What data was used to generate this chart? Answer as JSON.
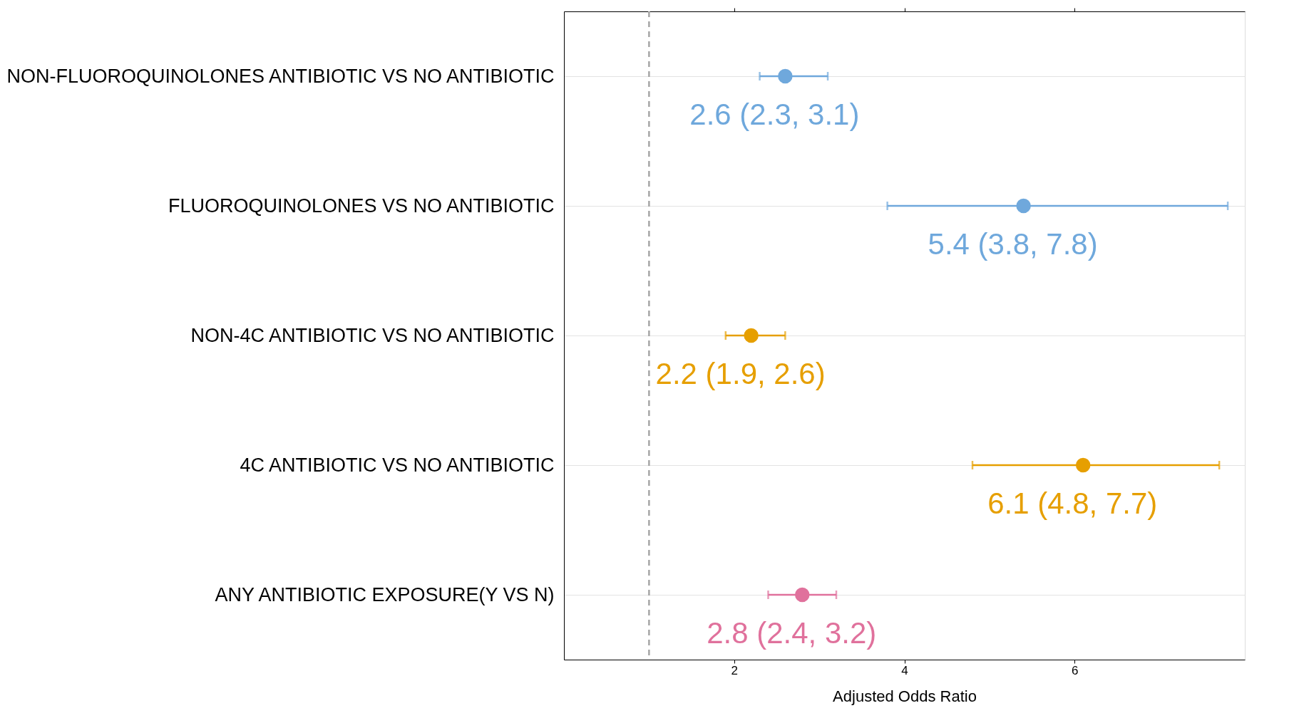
{
  "chart_data": {
    "type": "scatter",
    "orientation": "horizontal",
    "xlabel": "Adjusted Odds Ratio",
    "categories": [
      "NON-FLUOROQUINOLONES ANTIBIOTIC VS NO ANTIBIOTIC",
      "FLUOROQUINOLONES VS NO ANTIBIOTIC",
      "NON-4C ANTIBIOTIC VS NO ANTIBIOTIC",
      "4C ANTIBIOTIC VS NO ANTIBIOTIC",
      "ANY ANTIBIOTIC EXPOSURE(Y VS N)"
    ],
    "values": [
      2.6,
      5.4,
      2.2,
      6.1,
      2.8
    ],
    "errors": [
      [
        2.3,
        3.1
      ],
      [
        3.8,
        7.8
      ],
      [
        1.9,
        2.6
      ],
      [
        4.8,
        7.7
      ],
      [
        2.4,
        3.2
      ]
    ],
    "colors": [
      "#6fa8dc",
      "#6fa8dc",
      "#e69f00",
      "#e69f00",
      "#e0719c"
    ],
    "value_labels": [
      "2.6 (2.3, 3.1)",
      "5.4 (3.8, 7.8)",
      "2.2 (1.9, 2.6)",
      "6.1 (4.8, 7.7)",
      "2.8 (2.4, 3.2)"
    ],
    "xlim": [
      0,
      8
    ],
    "xticks": [
      2,
      4,
      6
    ],
    "ref_lines": [
      {
        "axis": "x",
        "value": 1,
        "label": null,
        "color": "#a6a6a6",
        "line_style": "dashed"
      }
    ],
    "grid": "y",
    "marker": "circle",
    "legend": false
  }
}
